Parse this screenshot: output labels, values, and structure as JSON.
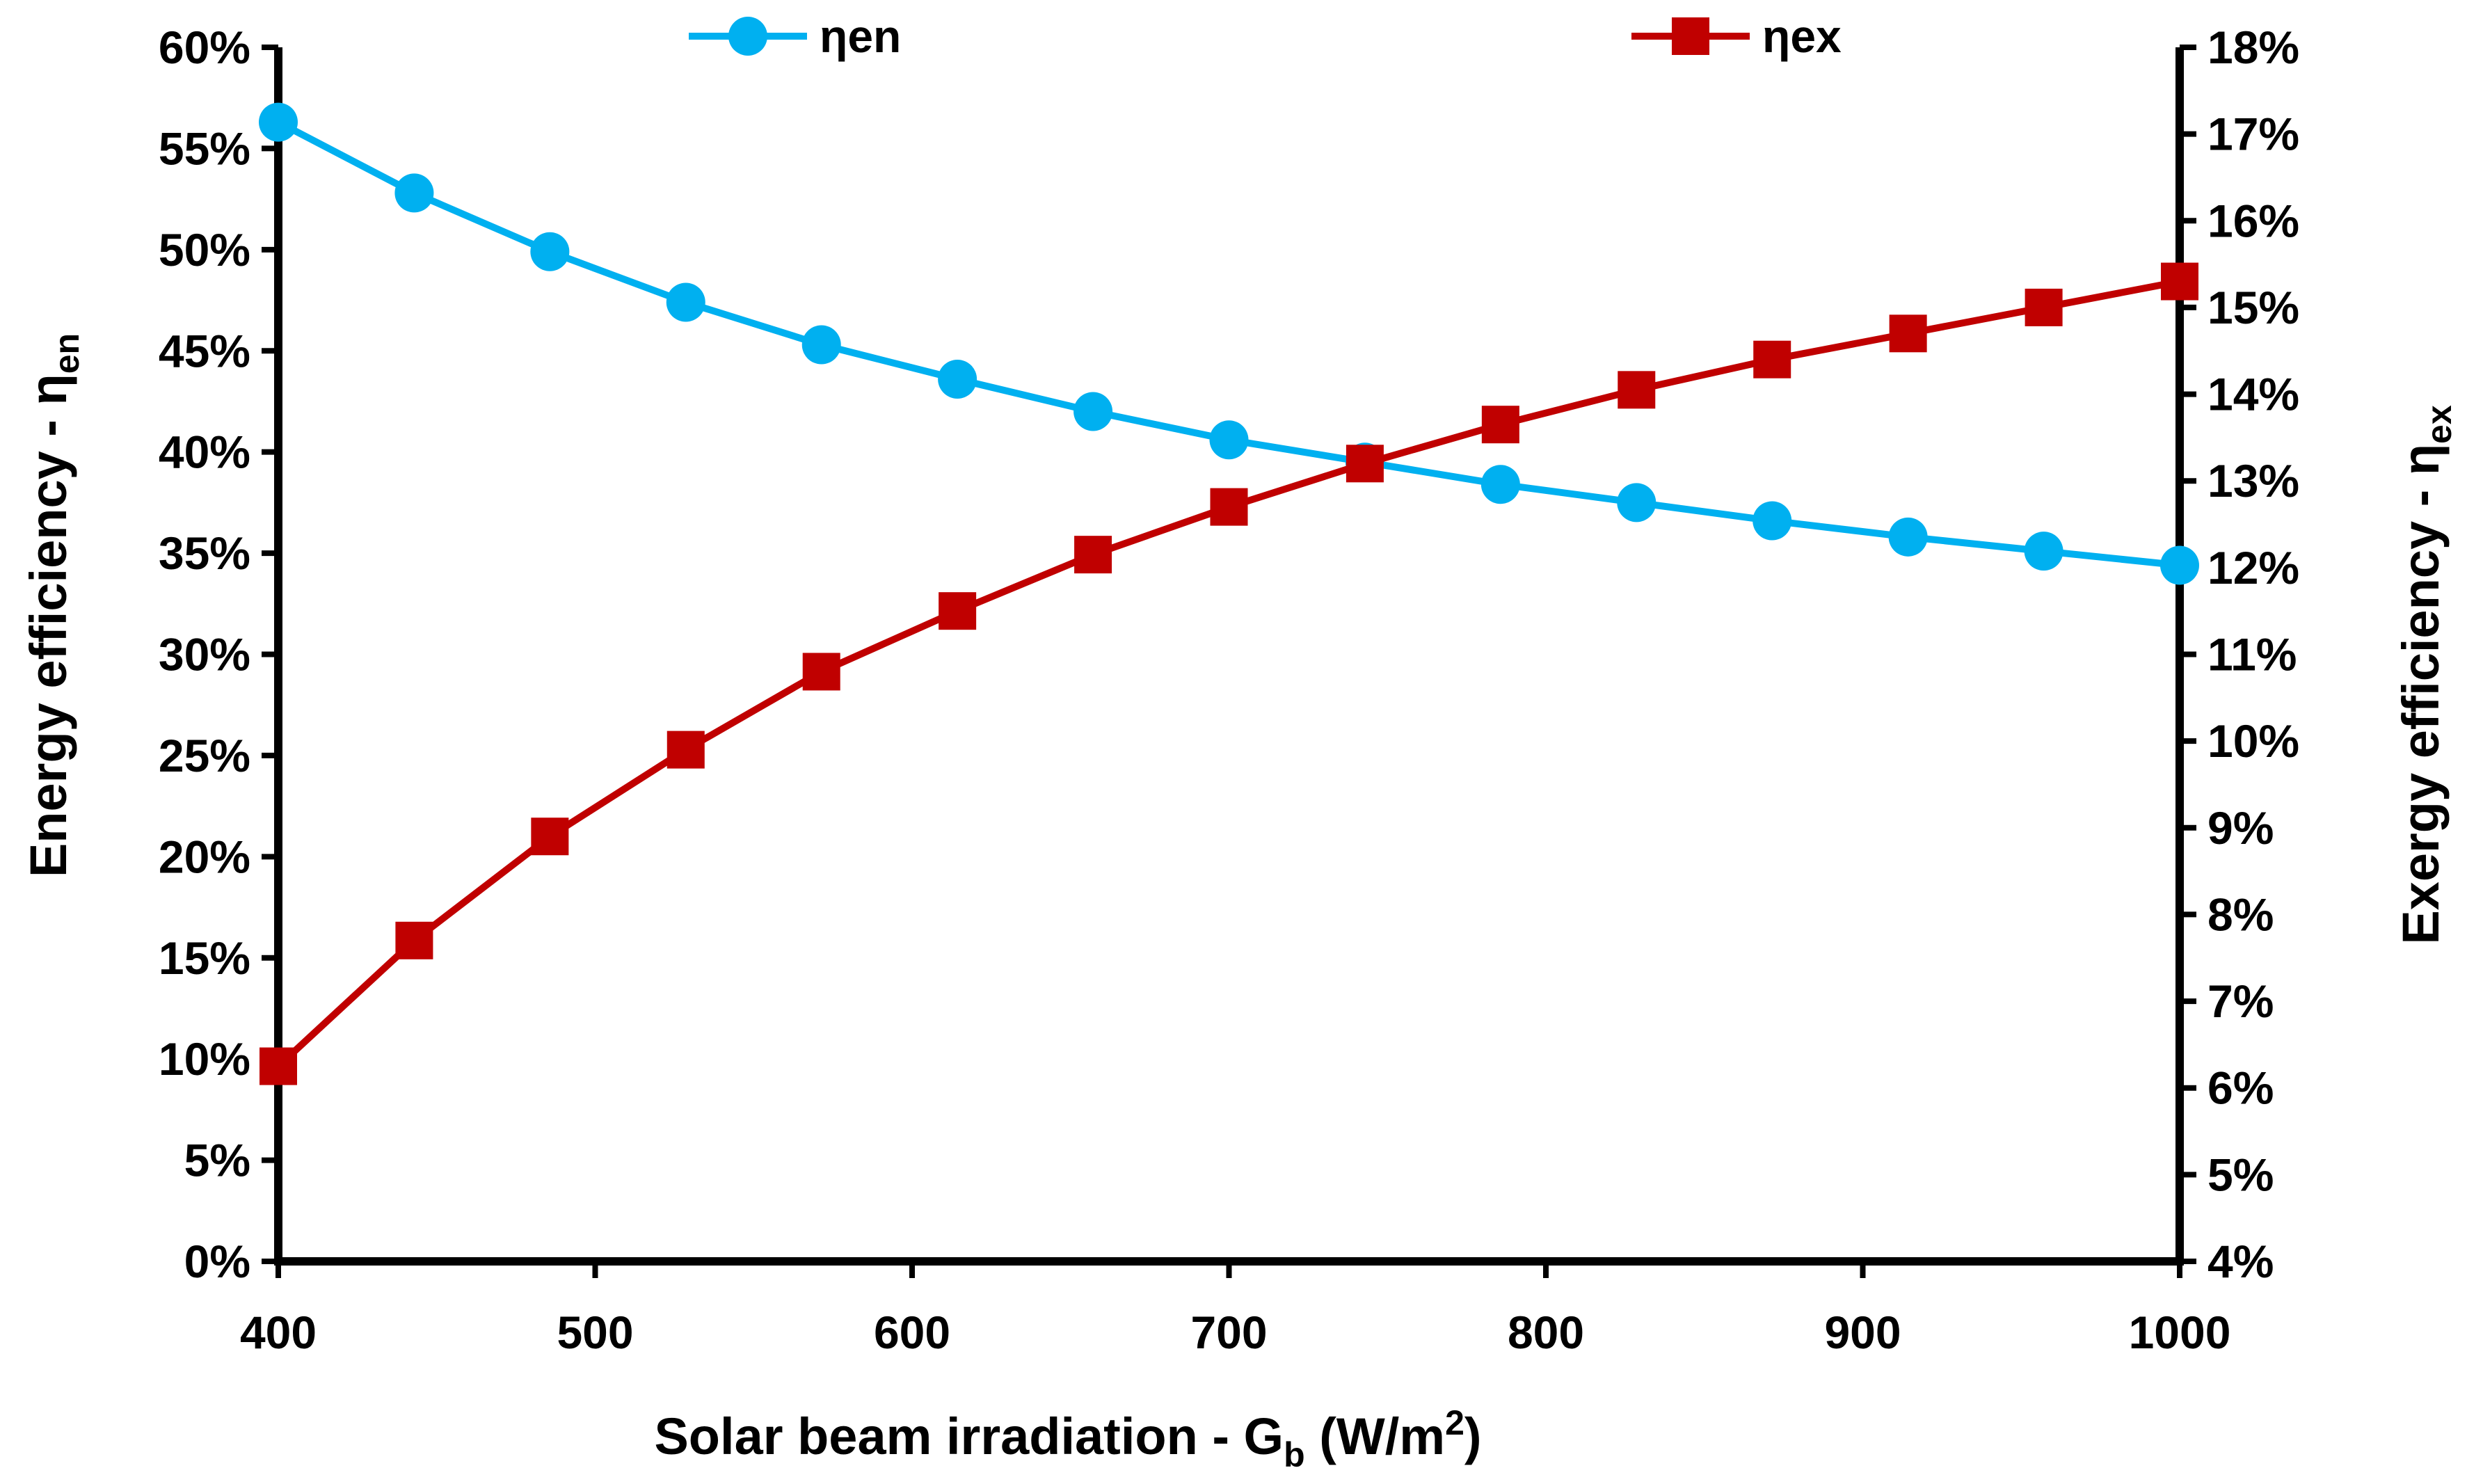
{
  "chart_data": {
    "type": "line",
    "xlabel": "Solar beam irradiation - G",
    "xlabel_sub": "b",
    "xlabel_unit_prefix": " (W/m",
    "xlabel_unit_sup": "2",
    "xlabel_unit_suffix": ")",
    "ylabel_left": "Energy efficiency - η",
    "ylabel_left_sub": "en",
    "ylabel_right": "Exergy efficiency - η",
    "ylabel_right_sub": "ex",
    "xlim": [
      400,
      1000
    ],
    "ylim_left": [
      0,
      0.6
    ],
    "ylim_right": [
      0.04,
      0.18
    ],
    "x_ticks": [
      400,
      500,
      600,
      700,
      800,
      900,
      1000
    ],
    "y_left_ticks": [
      0,
      0.05,
      0.1,
      0.15,
      0.2,
      0.25,
      0.3,
      0.35,
      0.4,
      0.45,
      0.5,
      0.55,
      0.6
    ],
    "y_right_ticks": [
      0.04,
      0.05,
      0.06,
      0.07,
      0.08,
      0.09,
      0.1,
      0.11,
      0.12,
      0.13,
      0.14,
      0.15,
      0.16,
      0.17,
      0.18
    ],
    "legend_position": "top",
    "series": [
      {
        "name": "ηen",
        "axis": "left",
        "color": "#00b0f0",
        "marker": "circle",
        "x": [
          400,
          442.9,
          485.7,
          528.6,
          571.4,
          614.3,
          657.1,
          700,
          742.9,
          785.7,
          828.6,
          871.4,
          914.3,
          957.1,
          1000
        ],
        "values": [
          0.563,
          0.528,
          0.499,
          0.474,
          0.453,
          0.436,
          0.42,
          0.406,
          0.395,
          0.384,
          0.375,
          0.366,
          0.358,
          0.351,
          0.344
        ]
      },
      {
        "name": "ηex",
        "axis": "right",
        "color": "#c00000",
        "marker": "square",
        "x": [
          400,
          442.9,
          485.7,
          528.6,
          571.4,
          614.3,
          657.1,
          700,
          742.9,
          785.7,
          828.6,
          871.4,
          914.3,
          957.1,
          1000
        ],
        "values": [
          0.0625,
          0.077,
          0.089,
          0.099,
          0.108,
          0.115,
          0.1215,
          0.127,
          0.132,
          0.1365,
          0.1405,
          0.144,
          0.147,
          0.15,
          0.153
        ]
      }
    ]
  }
}
